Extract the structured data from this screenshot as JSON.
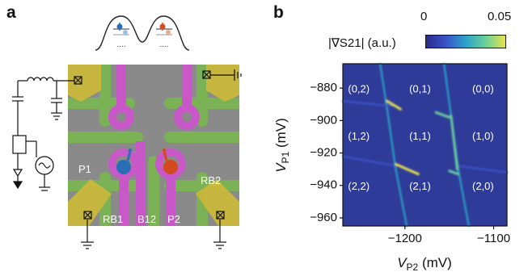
{
  "panel_a": {
    "label": "a",
    "gate_labels": {
      "p1": "P1",
      "p2": "P2",
      "rb1": "RB1",
      "rb2": "RB2",
      "b12": "B12"
    },
    "dots_above": "....",
    "colors": {
      "plunger": "#c858c8",
      "barrier": "#7ab553",
      "reservoir": "#c9b83c",
      "substrate": "#8a8a8a",
      "electron_left": "#2a6fb5",
      "electron_right": "#d24a1e"
    }
  },
  "panel_b": {
    "label": "b",
    "colorbar": {
      "label": "|∇S21| (a.u.)",
      "min": "0",
      "max": "0.05",
      "colors": [
        "#2b2b8a",
        "#3a53c8",
        "#2aa3c8",
        "#6ad09b",
        "#e8e34a"
      ]
    }
  },
  "chart_data": {
    "type": "heatmap",
    "xlabel": "VP2 (mV)",
    "ylabel": "VP1 (mV)",
    "xlim": [
      -1270,
      -1085
    ],
    "ylim": [
      -965,
      -865
    ],
    "xticks": [
      -1200,
      -1100
    ],
    "xtick_labels": [
      "−1200",
      "−1100"
    ],
    "yticks": [
      -880,
      -900,
      -920,
      -940,
      -960
    ],
    "ytick_labels": [
      "−880",
      "−900",
      "−920",
      "−940",
      "−960"
    ],
    "regions": [
      {
        "label": "(0,2)",
        "x": -1252,
        "y": -881
      },
      {
        "label": "(0,1)",
        "x": -1183,
        "y": -881
      },
      {
        "label": "(0,0)",
        "x": -1112,
        "y": -881
      },
      {
        "label": "(1,2)",
        "x": -1252,
        "y": -910
      },
      {
        "label": "(1,1)",
        "x": -1183,
        "y": -910
      },
      {
        "label": "(1,0)",
        "x": -1112,
        "y": -910
      },
      {
        "label": "(2,2)",
        "x": -1252,
        "y": -941
      },
      {
        "label": "(2,1)",
        "x": -1183,
        "y": -941
      },
      {
        "label": "(2,0)",
        "x": -1112,
        "y": -941
      }
    ],
    "transition_lines": [
      {
        "points": [
          [
            -1228,
            -865
          ],
          [
            -1220,
            -893
          ],
          [
            -1211,
            -928
          ],
          [
            -1198,
            -965
          ]
        ],
        "strength": 0.4
      },
      {
        "points": [
          [
            -1156,
            -865
          ],
          [
            -1148,
            -897
          ],
          [
            -1140,
            -930
          ],
          [
            -1128,
            -965
          ]
        ],
        "strength": 0.35
      },
      {
        "points": [
          [
            -1270,
            -888
          ],
          [
            -1215,
            -891
          ]
        ],
        "strength": 0.25
      },
      {
        "points": [
          [
            -1270,
            -922
          ],
          [
            -1210,
            -928
          ]
        ],
        "strength": 0.25
      },
      {
        "points": [
          [
            -1140,
            -928
          ],
          [
            -1085,
            -932
          ]
        ],
        "strength": 0.2
      },
      {
        "points": [
          [
            -1220,
            -888
          ],
          [
            -1205,
            -893
          ]
        ],
        "strength": 1.0
      },
      {
        "points": [
          [
            -1165,
            -895
          ],
          [
            -1150,
            -898
          ]
        ],
        "strength": 0.8
      },
      {
        "points": [
          [
            -1210,
            -927
          ],
          [
            -1185,
            -933
          ]
        ],
        "strength": 1.0
      },
      {
        "points": [
          [
            -1150,
            -931
          ],
          [
            -1140,
            -933
          ]
        ],
        "strength": 0.7
      },
      {
        "points": [
          [
            -1148,
            -897
          ],
          [
            -1141,
            -930
          ]
        ],
        "strength": 0.75
      }
    ]
  }
}
